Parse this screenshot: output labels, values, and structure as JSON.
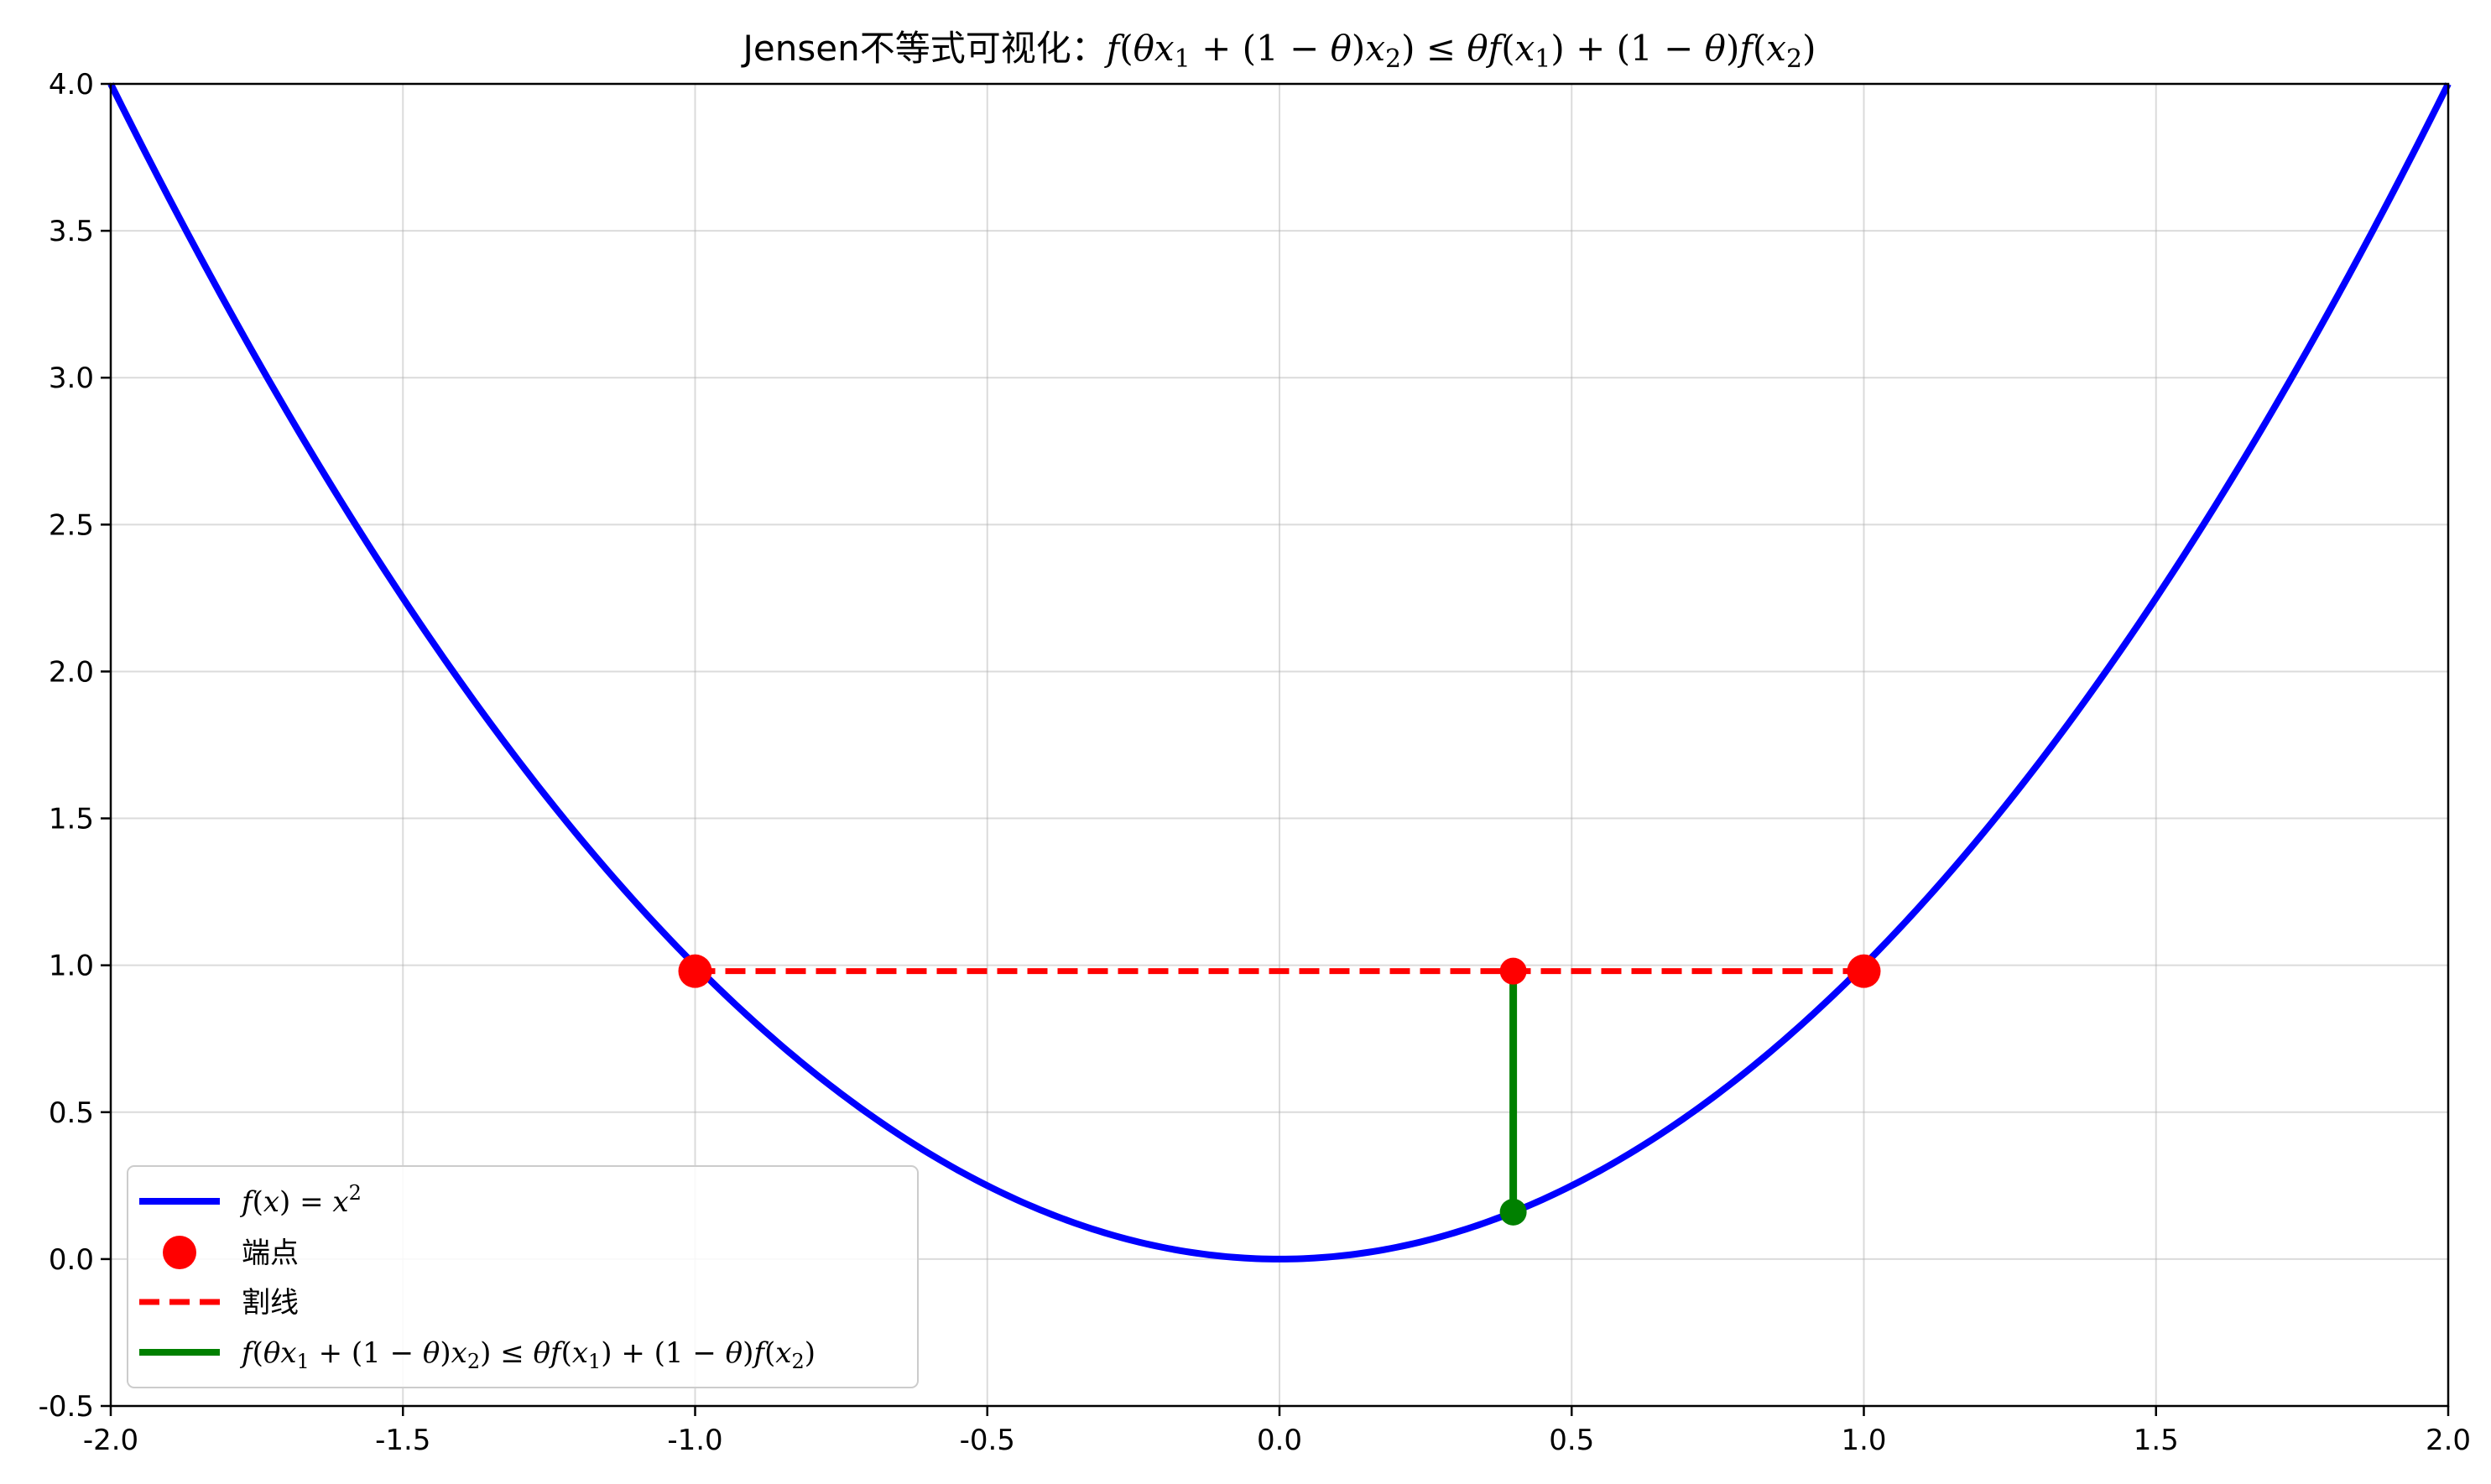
{
  "chart_data": {
    "type": "line",
    "title": "Jensen不等式可视化：f(θx₁ + (1 − θ)x₂) ≤ θf(x₁) + (1 − θ)f(x₂)",
    "title_plain": "Jensen不等式可视化：",
    "xlabel": "",
    "ylabel": "",
    "xlim": [
      -2.0,
      2.0
    ],
    "ylim": [
      -0.5,
      4.0
    ],
    "grid": true,
    "legend_position": "lower-left",
    "x_ticks": [
      -2.0,
      -1.5,
      -1.0,
      -0.5,
      0.0,
      0.5,
      1.0,
      1.5,
      2.0
    ],
    "x_tick_labels": [
      "-2.0",
      "-1.5",
      "-1.0",
      "-0.5",
      "0.0",
      "0.5",
      "1.0",
      "1.5",
      "2.0"
    ],
    "y_ticks": [
      -0.5,
      0.0,
      0.5,
      1.0,
      1.5,
      2.0,
      2.5,
      3.0,
      3.5,
      4.0
    ],
    "y_tick_labels": [
      "-0.5",
      "0.0",
      "0.5",
      "1.0",
      "1.5",
      "2.0",
      "2.5",
      "3.0",
      "3.5",
      "4.0"
    ],
    "series": [
      {
        "name": "f(x) = x²",
        "kind": "curve",
        "function": "x^2",
        "x_range": [
          -2.0,
          2.0
        ],
        "color": "#0000ff"
      },
      {
        "name": "端点",
        "kind": "points",
        "points": [
          [
            -1.0,
            0.98
          ],
          [
            1.0,
            0.98
          ]
        ],
        "color": "#ff0000"
      },
      {
        "name": "割线",
        "kind": "dashed-line",
        "points": [
          [
            -1.0,
            0.98
          ],
          [
            1.0,
            0.98
          ]
        ],
        "color": "#ff0000"
      },
      {
        "name": "f(θx₁ + (1 − θ)x₂) ≤ θf(x₁) + (1 − θ)f(x₂)",
        "kind": "segment",
        "points": [
          [
            0.4,
            0.16
          ],
          [
            0.4,
            0.98
          ]
        ],
        "color": "#008000"
      }
    ],
    "markers": [
      {
        "x": 0.4,
        "y": 0.98,
        "color": "#ff0000"
      },
      {
        "x": 0.4,
        "y": 0.16,
        "color": "#008000"
      }
    ]
  }
}
